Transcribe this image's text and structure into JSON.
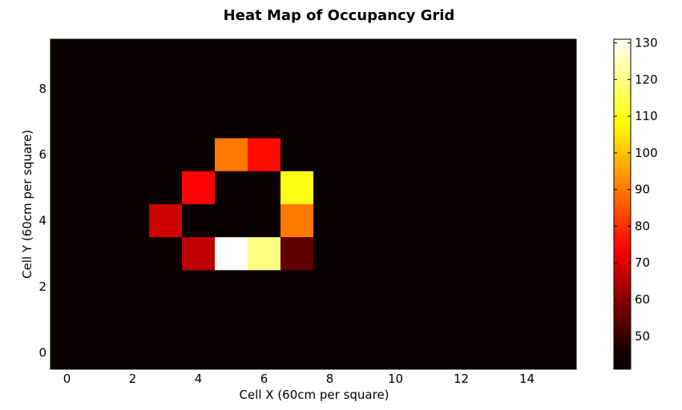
{
  "chart_data": {
    "type": "heatmap",
    "title": "Heat Map of Occupancy Grid",
    "xlabel": "Cell X (60cm per square)",
    "ylabel": "Cell Y (60cm per square)",
    "xlim": [
      -0.5,
      15.5
    ],
    "ylim": [
      -0.5,
      9.5
    ],
    "x_ticks": [
      0,
      2,
      4,
      6,
      8,
      10,
      12,
      14
    ],
    "y_ticks": [
      0,
      2,
      4,
      6,
      8
    ],
    "colormap": "hot",
    "colorbar": {
      "min": 41,
      "max": 131,
      "ticks": [
        50,
        60,
        70,
        80,
        90,
        100,
        110,
        120,
        130
      ]
    },
    "background_value": 41,
    "grid": false,
    "cells": [
      {
        "x": 5,
        "y": 6,
        "value": 90
      },
      {
        "x": 6,
        "y": 6,
        "value": 75
      },
      {
        "x": 4,
        "y": 5,
        "value": 74
      },
      {
        "x": 7,
        "y": 5,
        "value": 110
      },
      {
        "x": 3,
        "y": 4,
        "value": 68
      },
      {
        "x": 7,
        "y": 4,
        "value": 90
      },
      {
        "x": 2,
        "y": 3,
        "value": 42
      },
      {
        "x": 4,
        "y": 3,
        "value": 66
      },
      {
        "x": 5,
        "y": 3,
        "value": 131
      },
      {
        "x": 6,
        "y": 3,
        "value": 120
      },
      {
        "x": 7,
        "y": 3,
        "value": 55
      }
    ]
  }
}
